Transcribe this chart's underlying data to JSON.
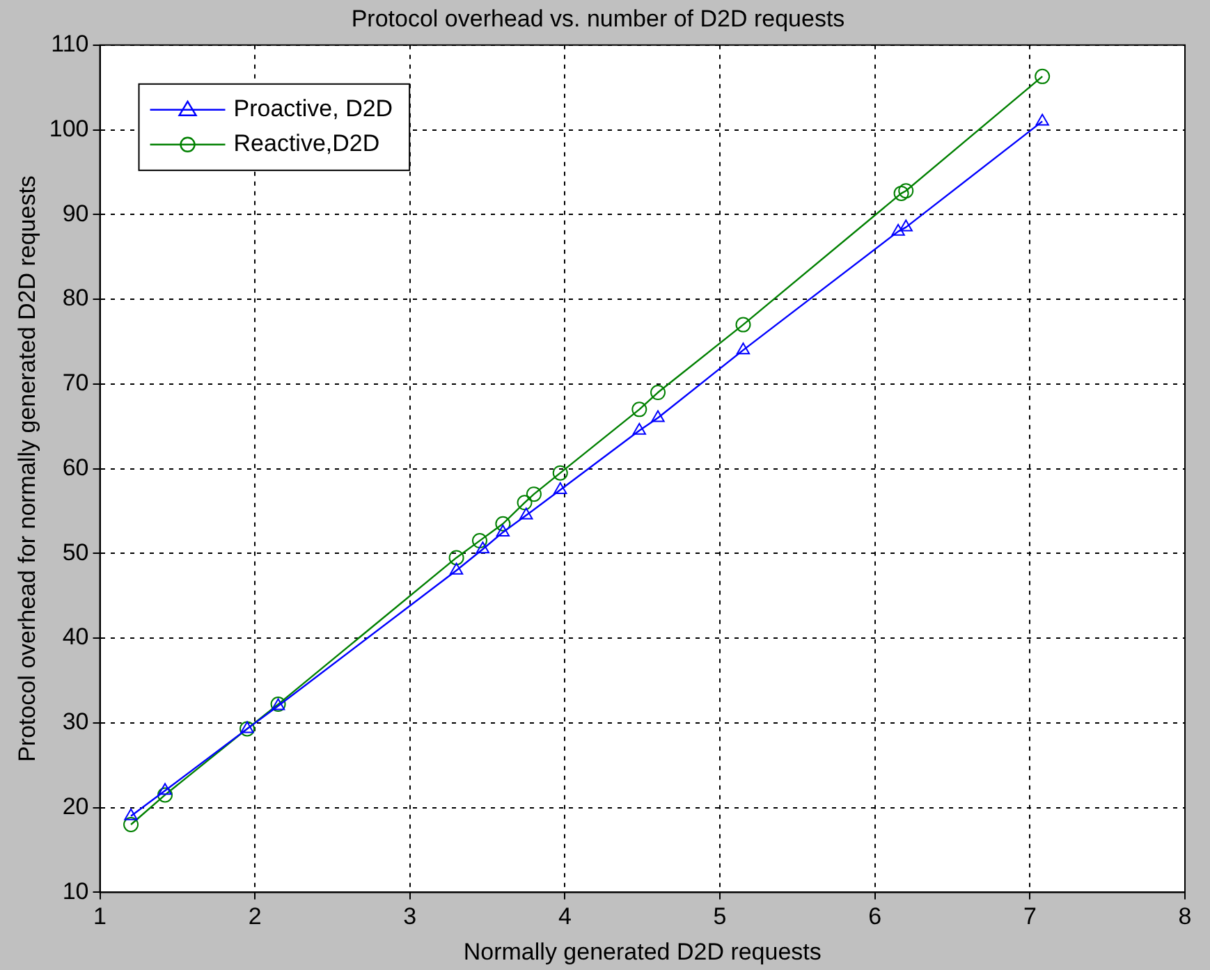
{
  "chart_data": {
    "type": "line",
    "title": "Protocol overhead vs. number of D2D requests",
    "xlabel": "Normally generated D2D requests",
    "ylabel": "Protocol overhead for normally generated D2D requests",
    "xlim": [
      1,
      8
    ],
    "xticks": [
      1,
      2,
      3,
      4,
      5,
      6,
      7,
      8
    ],
    "ylim": [
      10,
      110
    ],
    "yticks": [
      10,
      20,
      30,
      40,
      50,
      60,
      70,
      80,
      90,
      100,
      110
    ],
    "grid": true,
    "legend": "top left",
    "line_style": "solid",
    "series": [
      {
        "name": "Proactive, D2D",
        "color": "#0000ff",
        "marker": "triangle",
        "x": [
          1.2,
          1.42,
          1.95,
          2.15,
          3.3,
          3.47,
          3.6,
          3.75,
          3.97,
          4.48,
          4.6,
          5.15,
          6.15,
          6.2,
          7.08
        ],
        "values": [
          19,
          22,
          29.3,
          32,
          48,
          50.5,
          52.5,
          54.5,
          57.5,
          64.5,
          66,
          74,
          88,
          88.5,
          101
        ]
      },
      {
        "name": "Reactive,D2D",
        "color": "#008000",
        "marker": "circle",
        "x": [
          1.2,
          1.42,
          1.95,
          2.15,
          3.3,
          3.45,
          3.6,
          3.74,
          3.8,
          3.97,
          4.48,
          4.6,
          5.15,
          6.17,
          6.2,
          7.08
        ],
        "values": [
          18,
          21.5,
          29.3,
          32.2,
          49.5,
          51.5,
          53.5,
          56,
          57,
          59.5,
          67,
          69,
          77,
          92.5,
          92.8,
          106.3
        ]
      }
    ]
  }
}
